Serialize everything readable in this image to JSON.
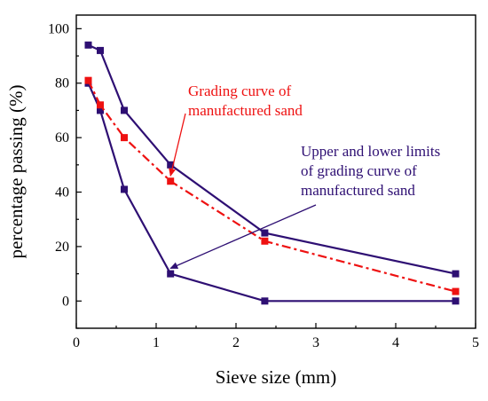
{
  "chart_data": {
    "type": "line",
    "xlabel": "Sieve size (mm)",
    "ylabel": "percentage passing (%)",
    "xlim": [
      0,
      5
    ],
    "ylim": [
      -10,
      105
    ],
    "xticks": [
      "0",
      "1",
      "2",
      "3",
      "4",
      "5"
    ],
    "yticks": [
      "0",
      "20",
      "40",
      "60",
      "80",
      "100"
    ],
    "grid": false,
    "series": [
      {
        "role": "upper-limit",
        "color": "#2e0f73",
        "line": "solid",
        "marker": "square",
        "x": [
          0.15,
          0.3,
          0.6,
          1.18,
          2.36,
          4.75
        ],
        "y": [
          94,
          92,
          70,
          50,
          25,
          10
        ]
      },
      {
        "role": "lower-limit",
        "color": "#2e0f73",
        "line": "solid",
        "marker": "square",
        "x": [
          0.15,
          0.3,
          0.6,
          1.18,
          2.36,
          4.75
        ],
        "y": [
          80,
          70,
          41,
          10,
          0,
          0
        ]
      },
      {
        "role": "manufactured-sand",
        "color": "#ee1111",
        "line": "dash-dot",
        "marker": "square",
        "x": [
          0.15,
          0.3,
          0.6,
          1.18,
          2.36,
          4.75
        ],
        "y": [
          81,
          72,
          60,
          44,
          22,
          3.5
        ]
      }
    ],
    "annotations": [
      {
        "color": "#ee1111",
        "lines": [
          "Grading curve of",
          "manufactured sand"
        ],
        "arrow_to": [
          1.18,
          46
        ]
      },
      {
        "color": "#2e0f73",
        "lines": [
          "Upper and lower limits",
          "of grading curve of",
          "manufactured sand"
        ],
        "arrow_to": [
          1.18,
          12
        ]
      }
    ]
  }
}
